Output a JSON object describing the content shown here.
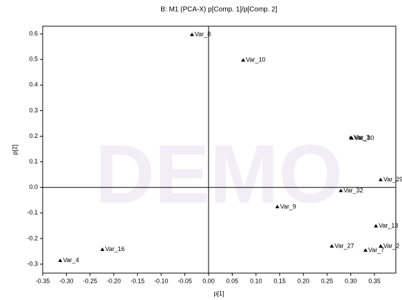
{
  "chart_data": {
    "type": "scatter",
    "title": "B:   M1 (PCA-X)   p[Comp. 1]/p[Comp. 2]",
    "xlabel": "p[1]",
    "ylabel": "p[2]",
    "watermark": "DEMO",
    "x": [
      -0.035,
      0.073,
      0.3,
      0.302,
      0.363,
      0.279,
      0.145,
      0.353,
      0.26,
      0.331,
      0.363,
      -0.224,
      -0.313
    ],
    "series": [
      {
        "color": "#000000",
        "values": [
          0.597,
          0.497,
          0.195,
          0.192,
          0.03,
          -0.013,
          -0.076,
          -0.151,
          -0.23,
          -0.246,
          -0.23,
          -0.243,
          -0.286
        ],
        "point_labels": [
          "Var_8",
          "Var_10",
          "Var_3",
          "Var_30",
          "Var_29",
          "Var_32",
          "Var_9",
          "Var_13",
          "Var_27",
          "Var_7",
          "Var_2",
          "Var_16",
          "Var_4"
        ]
      }
    ],
    "xlim": [
      -0.35,
      0.395
    ],
    "ylim": [
      -0.335,
      0.63
    ],
    "xticks": [
      {
        "value": -0.35,
        "label": "-0.35"
      },
      {
        "value": -0.3,
        "label": "-0.30"
      },
      {
        "value": -0.25,
        "label": "-0.25"
      },
      {
        "value": -0.2,
        "label": "-0.20"
      },
      {
        "value": -0.15,
        "label": "-0.15"
      },
      {
        "value": -0.1,
        "label": "-0.10"
      },
      {
        "value": -0.05,
        "label": "-0.05"
      },
      {
        "value": 0,
        "label": "0.00"
      },
      {
        "value": 0.05,
        "label": "0.05"
      },
      {
        "value": 0.1,
        "label": "0.10"
      },
      {
        "value": 0.15,
        "label": "0.15"
      },
      {
        "value": 0.2,
        "label": "0.20"
      },
      {
        "value": 0.25,
        "label": "0.25"
      },
      {
        "value": 0.3,
        "label": "0.30"
      },
      {
        "value": 0.35,
        "label": "0.35"
      }
    ],
    "yticks": [
      -0.3,
      -0.2,
      -0.1,
      {
        "value": 0,
        "label": "0.0"
      },
      0.1,
      0.2,
      0.3,
      0.4,
      0.5,
      0.6
    ]
  }
}
